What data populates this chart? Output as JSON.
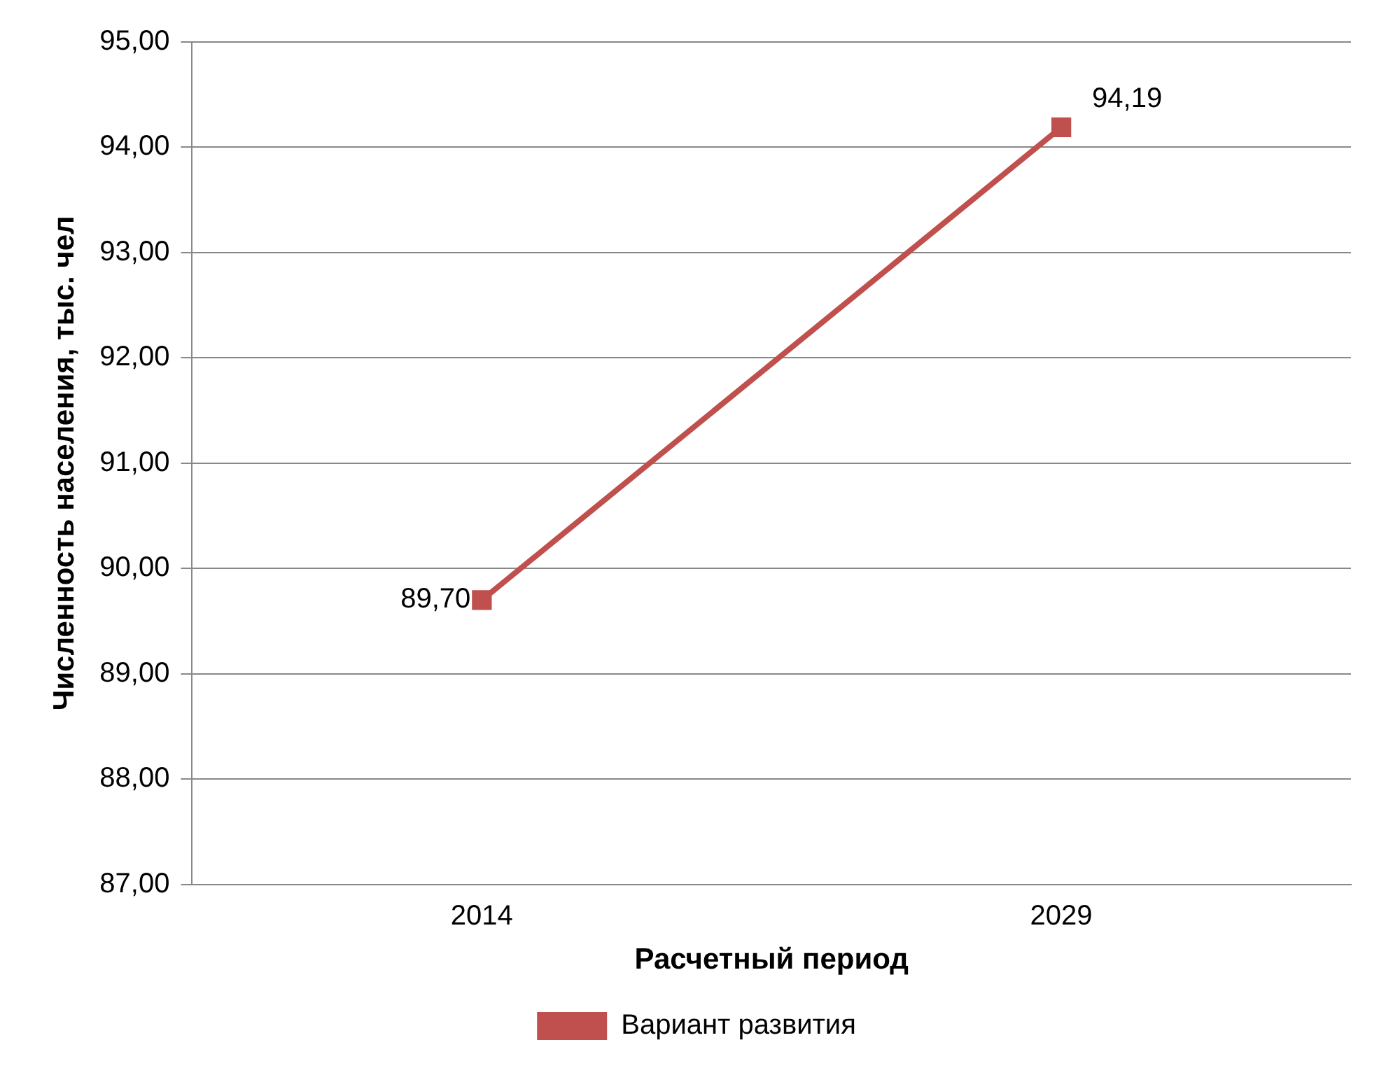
{
  "chart_data": {
    "type": "line",
    "xlabel": "Расчетный период",
    "ylabel": "Численность населения, тыс. чел",
    "categories": [
      "2014",
      "2029"
    ],
    "series": [
      {
        "name": "Вариант развития",
        "color": "#c0504d",
        "values": [
          89.7,
          94.19
        ],
        "value_labels": [
          "89,70",
          "94,19"
        ]
      }
    ],
    "ylim": [
      87,
      95
    ],
    "yticks": [
      {
        "value": 87,
        "label": "87,00"
      },
      {
        "value": 88,
        "label": "88,00"
      },
      {
        "value": 89,
        "label": "89,00"
      },
      {
        "value": 90,
        "label": "90,00"
      },
      {
        "value": 91,
        "label": "91,00"
      },
      {
        "value": 92,
        "label": "92,00"
      },
      {
        "value": 93,
        "label": "93,00"
      },
      {
        "value": 94,
        "label": "94,00"
      },
      {
        "value": 95,
        "label": "95,00"
      }
    ],
    "grid": "y",
    "legend": "bottom",
    "marker": "square",
    "line_style": "solid"
  }
}
